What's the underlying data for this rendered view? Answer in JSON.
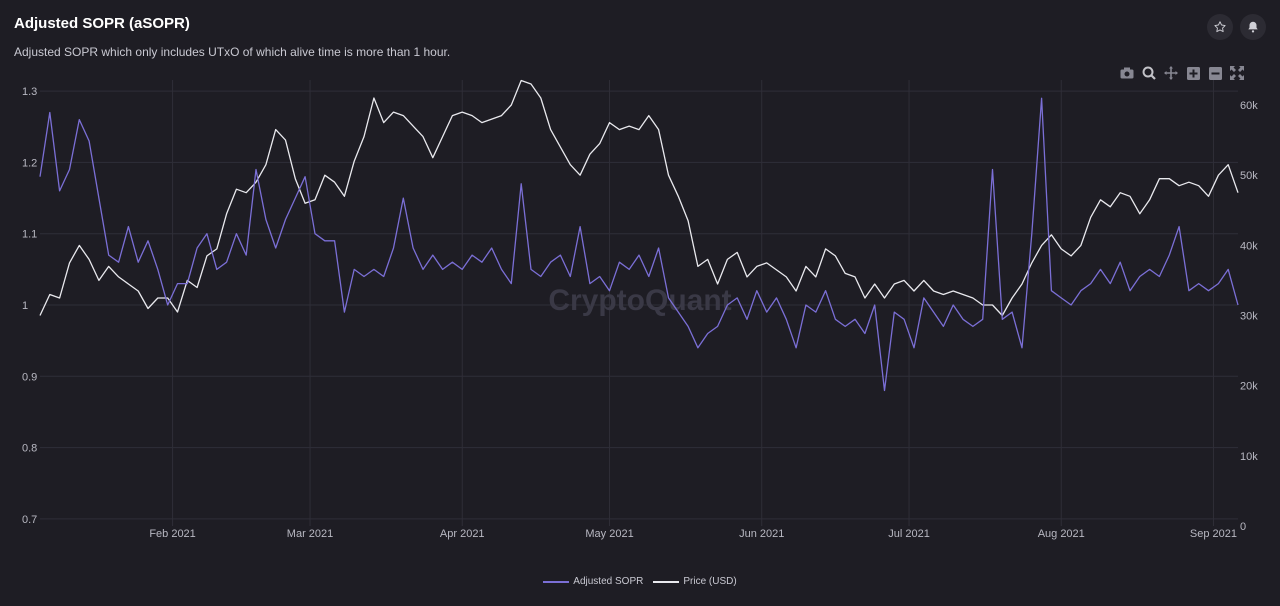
{
  "header": {
    "title": "Adjusted SOPR (aSOPR)",
    "subtitle": "Adjusted SOPR which only includes UTxO of which alive time is more than 1 hour."
  },
  "actions": {
    "star_icon": "star-icon",
    "bell_icon": "bell-icon"
  },
  "toolbar": [
    "camera-icon",
    "zoom-icon",
    "pan-icon",
    "zoom-in-icon",
    "zoom-out-icon",
    "autoscale-icon"
  ],
  "watermark": "CryptoQuant",
  "colors": {
    "background": "#1e1d24",
    "grid": "#2f2e38",
    "asopr": "#7b6fd6",
    "price": "#e9e9ee"
  },
  "chart_data": {
    "type": "line",
    "title": "Adjusted SOPR (aSOPR)",
    "x_tick_labels": [
      "Feb 2021",
      "Mar 2021",
      "Apr 2021",
      "May 2021",
      "Jun 2021",
      "Jul 2021",
      "Aug 2021",
      "Sep 2021"
    ],
    "x_tick_dates": [
      "2021-02-01",
      "2021-03-01",
      "2021-04-01",
      "2021-05-01",
      "2021-06-01",
      "2021-07-01",
      "2021-08-01",
      "2021-09-01"
    ],
    "x_range": [
      "2021-01-05",
      "2021-09-06"
    ],
    "y_left_ticks": [
      "0.7",
      "0.8",
      "0.9",
      "1",
      "1.1",
      "1.2",
      "1.3"
    ],
    "y_left_range": [
      0.69,
      1.31
    ],
    "y_right_ticks": [
      "0",
      "10k",
      "20k",
      "30k",
      "40k",
      "50k",
      "60k"
    ],
    "y_right_range": [
      0,
      63000
    ],
    "grid": true,
    "legend_position": "bottom-center",
    "series": [
      {
        "name": "Adjusted SOPR",
        "axis": "left",
        "points": [
          [
            "2021-01-05",
            1.18
          ],
          [
            "2021-01-07",
            1.27
          ],
          [
            "2021-01-09",
            1.16
          ],
          [
            "2021-01-11",
            1.19
          ],
          [
            "2021-01-13",
            1.26
          ],
          [
            "2021-01-15",
            1.23
          ],
          [
            "2021-01-17",
            1.15
          ],
          [
            "2021-01-19",
            1.07
          ],
          [
            "2021-01-21",
            1.06
          ],
          [
            "2021-01-23",
            1.11
          ],
          [
            "2021-01-25",
            1.06
          ],
          [
            "2021-01-27",
            1.09
          ],
          [
            "2021-01-29",
            1.05
          ],
          [
            "2021-01-31",
            1.0
          ],
          [
            "2021-02-02",
            1.03
          ],
          [
            "2021-02-04",
            1.03
          ],
          [
            "2021-02-06",
            1.08
          ],
          [
            "2021-02-08",
            1.1
          ],
          [
            "2021-02-10",
            1.05
          ],
          [
            "2021-02-12",
            1.06
          ],
          [
            "2021-02-14",
            1.1
          ],
          [
            "2021-02-16",
            1.07
          ],
          [
            "2021-02-18",
            1.19
          ],
          [
            "2021-02-20",
            1.12
          ],
          [
            "2021-02-22",
            1.08
          ],
          [
            "2021-02-24",
            1.12
          ],
          [
            "2021-02-26",
            1.15
          ],
          [
            "2021-02-28",
            1.18
          ],
          [
            "2021-03-02",
            1.1
          ],
          [
            "2021-03-04",
            1.09
          ],
          [
            "2021-03-06",
            1.09
          ],
          [
            "2021-03-08",
            0.99
          ],
          [
            "2021-03-10",
            1.05
          ],
          [
            "2021-03-12",
            1.04
          ],
          [
            "2021-03-14",
            1.05
          ],
          [
            "2021-03-16",
            1.04
          ],
          [
            "2021-03-18",
            1.08
          ],
          [
            "2021-03-20",
            1.15
          ],
          [
            "2021-03-22",
            1.08
          ],
          [
            "2021-03-24",
            1.05
          ],
          [
            "2021-03-26",
            1.07
          ],
          [
            "2021-03-28",
            1.05
          ],
          [
            "2021-03-30",
            1.06
          ],
          [
            "2021-04-01",
            1.05
          ],
          [
            "2021-04-03",
            1.07
          ],
          [
            "2021-04-05",
            1.06
          ],
          [
            "2021-04-07",
            1.08
          ],
          [
            "2021-04-09",
            1.05
          ],
          [
            "2021-04-11",
            1.03
          ],
          [
            "2021-04-13",
            1.17
          ],
          [
            "2021-04-15",
            1.05
          ],
          [
            "2021-04-17",
            1.04
          ],
          [
            "2021-04-19",
            1.06
          ],
          [
            "2021-04-21",
            1.07
          ],
          [
            "2021-04-23",
            1.04
          ],
          [
            "2021-04-25",
            1.11
          ],
          [
            "2021-04-27",
            1.03
          ],
          [
            "2021-04-29",
            1.04
          ],
          [
            "2021-05-01",
            1.02
          ],
          [
            "2021-05-03",
            1.06
          ],
          [
            "2021-05-05",
            1.05
          ],
          [
            "2021-05-07",
            1.07
          ],
          [
            "2021-05-09",
            1.04
          ],
          [
            "2021-05-11",
            1.08
          ],
          [
            "2021-05-13",
            1.01
          ],
          [
            "2021-05-15",
            0.99
          ],
          [
            "2021-05-17",
            0.97
          ],
          [
            "2021-05-19",
            0.94
          ],
          [
            "2021-05-21",
            0.96
          ],
          [
            "2021-05-23",
            0.97
          ],
          [
            "2021-05-25",
            1.0
          ],
          [
            "2021-05-27",
            1.01
          ],
          [
            "2021-05-29",
            0.98
          ],
          [
            "2021-05-31",
            1.02
          ],
          [
            "2021-06-02",
            0.99
          ],
          [
            "2021-06-04",
            1.01
          ],
          [
            "2021-06-06",
            0.98
          ],
          [
            "2021-06-08",
            0.94
          ],
          [
            "2021-06-10",
            1.0
          ],
          [
            "2021-06-12",
            0.99
          ],
          [
            "2021-06-14",
            1.02
          ],
          [
            "2021-06-16",
            0.98
          ],
          [
            "2021-06-18",
            0.97
          ],
          [
            "2021-06-20",
            0.98
          ],
          [
            "2021-06-22",
            0.96
          ],
          [
            "2021-06-24",
            1.0
          ],
          [
            "2021-06-26",
            0.88
          ],
          [
            "2021-06-28",
            0.99
          ],
          [
            "2021-06-30",
            0.98
          ],
          [
            "2021-07-02",
            0.94
          ],
          [
            "2021-07-04",
            1.01
          ],
          [
            "2021-07-06",
            0.99
          ],
          [
            "2021-07-08",
            0.97
          ],
          [
            "2021-07-10",
            1.0
          ],
          [
            "2021-07-12",
            0.98
          ],
          [
            "2021-07-14",
            0.97
          ],
          [
            "2021-07-16",
            0.98
          ],
          [
            "2021-07-18",
            1.19
          ],
          [
            "2021-07-20",
            0.98
          ],
          [
            "2021-07-22",
            0.99
          ],
          [
            "2021-07-24",
            0.94
          ],
          [
            "2021-07-26",
            1.1
          ],
          [
            "2021-07-28",
            1.29
          ],
          [
            "2021-07-30",
            1.02
          ],
          [
            "2021-08-01",
            1.01
          ],
          [
            "2021-08-03",
            1.0
          ],
          [
            "2021-08-05",
            1.02
          ],
          [
            "2021-08-07",
            1.03
          ],
          [
            "2021-08-09",
            1.05
          ],
          [
            "2021-08-11",
            1.03
          ],
          [
            "2021-08-13",
            1.06
          ],
          [
            "2021-08-15",
            1.02
          ],
          [
            "2021-08-17",
            1.04
          ],
          [
            "2021-08-19",
            1.05
          ],
          [
            "2021-08-21",
            1.04
          ],
          [
            "2021-08-23",
            1.07
          ],
          [
            "2021-08-25",
            1.11
          ],
          [
            "2021-08-27",
            1.02
          ],
          [
            "2021-08-29",
            1.03
          ],
          [
            "2021-08-31",
            1.02
          ],
          [
            "2021-09-02",
            1.03
          ],
          [
            "2021-09-04",
            1.05
          ],
          [
            "2021-09-06",
            1.0
          ]
        ]
      },
      {
        "name": "Price (USD)",
        "axis": "right",
        "points": [
          [
            "2021-01-05",
            30000
          ],
          [
            "2021-01-07",
            33000
          ],
          [
            "2021-01-09",
            32500
          ],
          [
            "2021-01-11",
            37500
          ],
          [
            "2021-01-13",
            40000
          ],
          [
            "2021-01-15",
            38000
          ],
          [
            "2021-01-17",
            35000
          ],
          [
            "2021-01-19",
            37000
          ],
          [
            "2021-01-21",
            35500
          ],
          [
            "2021-01-23",
            34500
          ],
          [
            "2021-01-25",
            33500
          ],
          [
            "2021-01-27",
            31000
          ],
          [
            "2021-01-29",
            32500
          ],
          [
            "2021-01-31",
            32500
          ],
          [
            "2021-02-02",
            30500
          ],
          [
            "2021-02-04",
            35000
          ],
          [
            "2021-02-06",
            34000
          ],
          [
            "2021-02-08",
            38500
          ],
          [
            "2021-02-10",
            39500
          ],
          [
            "2021-02-12",
            44500
          ],
          [
            "2021-02-14",
            48000
          ],
          [
            "2021-02-16",
            47500
          ],
          [
            "2021-02-18",
            49000
          ],
          [
            "2021-02-20",
            51500
          ],
          [
            "2021-02-22",
            56500
          ],
          [
            "2021-02-24",
            55000
          ],
          [
            "2021-02-26",
            49500
          ],
          [
            "2021-02-28",
            46000
          ],
          [
            "2021-03-02",
            46500
          ],
          [
            "2021-03-04",
            50000
          ],
          [
            "2021-03-06",
            49000
          ],
          [
            "2021-03-08",
            47000
          ],
          [
            "2021-03-10",
            52000
          ],
          [
            "2021-03-12",
            55500
          ],
          [
            "2021-03-14",
            61000
          ],
          [
            "2021-03-16",
            57500
          ],
          [
            "2021-03-18",
            59000
          ],
          [
            "2021-03-20",
            58500
          ],
          [
            "2021-03-22",
            57000
          ],
          [
            "2021-03-24",
            55500
          ],
          [
            "2021-03-26",
            52500
          ],
          [
            "2021-03-28",
            55500
          ],
          [
            "2021-03-30",
            58500
          ],
          [
            "2021-04-01",
            59000
          ],
          [
            "2021-04-03",
            58500
          ],
          [
            "2021-04-05",
            57500
          ],
          [
            "2021-04-07",
            58000
          ],
          [
            "2021-04-09",
            58500
          ],
          [
            "2021-04-11",
            60000
          ],
          [
            "2021-04-13",
            63500
          ],
          [
            "2021-04-15",
            63000
          ],
          [
            "2021-04-17",
            61000
          ],
          [
            "2021-04-19",
            56500
          ],
          [
            "2021-04-21",
            54000
          ],
          [
            "2021-04-23",
            51500
          ],
          [
            "2021-04-25",
            50000
          ],
          [
            "2021-04-27",
            53000
          ],
          [
            "2021-04-29",
            54500
          ],
          [
            "2021-05-01",
            57500
          ],
          [
            "2021-05-03",
            56500
          ],
          [
            "2021-05-05",
            57000
          ],
          [
            "2021-05-07",
            56500
          ],
          [
            "2021-05-09",
            58500
          ],
          [
            "2021-05-11",
            56500
          ],
          [
            "2021-05-13",
            50000
          ],
          [
            "2021-05-15",
            47000
          ],
          [
            "2021-05-17",
            43500
          ],
          [
            "2021-05-19",
            37000
          ],
          [
            "2021-05-21",
            38000
          ],
          [
            "2021-05-23",
            34500
          ],
          [
            "2021-05-25",
            38000
          ],
          [
            "2021-05-27",
            39000
          ],
          [
            "2021-05-29",
            35500
          ],
          [
            "2021-05-31",
            37000
          ],
          [
            "2021-06-02",
            37500
          ],
          [
            "2021-06-04",
            36500
          ],
          [
            "2021-06-06",
            35500
          ],
          [
            "2021-06-08",
            33500
          ],
          [
            "2021-06-10",
            37000
          ],
          [
            "2021-06-12",
            35500
          ],
          [
            "2021-06-14",
            39500
          ],
          [
            "2021-06-16",
            38500
          ],
          [
            "2021-06-18",
            36000
          ],
          [
            "2021-06-20",
            35500
          ],
          [
            "2021-06-22",
            32500
          ],
          [
            "2021-06-24",
            34500
          ],
          [
            "2021-06-26",
            32500
          ],
          [
            "2021-06-28",
            34500
          ],
          [
            "2021-06-30",
            35000
          ],
          [
            "2021-07-02",
            33500
          ],
          [
            "2021-07-04",
            35000
          ],
          [
            "2021-07-06",
            33500
          ],
          [
            "2021-07-08",
            33000
          ],
          [
            "2021-07-10",
            33500
          ],
          [
            "2021-07-12",
            33000
          ],
          [
            "2021-07-14",
            32500
          ],
          [
            "2021-07-16",
            31500
          ],
          [
            "2021-07-18",
            31500
          ],
          [
            "2021-07-20",
            30000
          ],
          [
            "2021-07-22",
            32500
          ],
          [
            "2021-07-24",
            34500
          ],
          [
            "2021-07-26",
            37500
          ],
          [
            "2021-07-28",
            40000
          ],
          [
            "2021-07-30",
            41500
          ],
          [
            "2021-08-01",
            39500
          ],
          [
            "2021-08-03",
            38500
          ],
          [
            "2021-08-05",
            40000
          ],
          [
            "2021-08-07",
            44000
          ],
          [
            "2021-08-09",
            46500
          ],
          [
            "2021-08-11",
            45500
          ],
          [
            "2021-08-13",
            47500
          ],
          [
            "2021-08-15",
            47000
          ],
          [
            "2021-08-17",
            44500
          ],
          [
            "2021-08-19",
            46500
          ],
          [
            "2021-08-21",
            49500
          ],
          [
            "2021-08-23",
            49500
          ],
          [
            "2021-08-25",
            48500
          ],
          [
            "2021-08-27",
            49000
          ],
          [
            "2021-08-29",
            48500
          ],
          [
            "2021-08-31",
            47000
          ],
          [
            "2021-09-02",
            50000
          ],
          [
            "2021-09-04",
            51500
          ],
          [
            "2021-09-06",
            47500
          ]
        ]
      }
    ]
  }
}
